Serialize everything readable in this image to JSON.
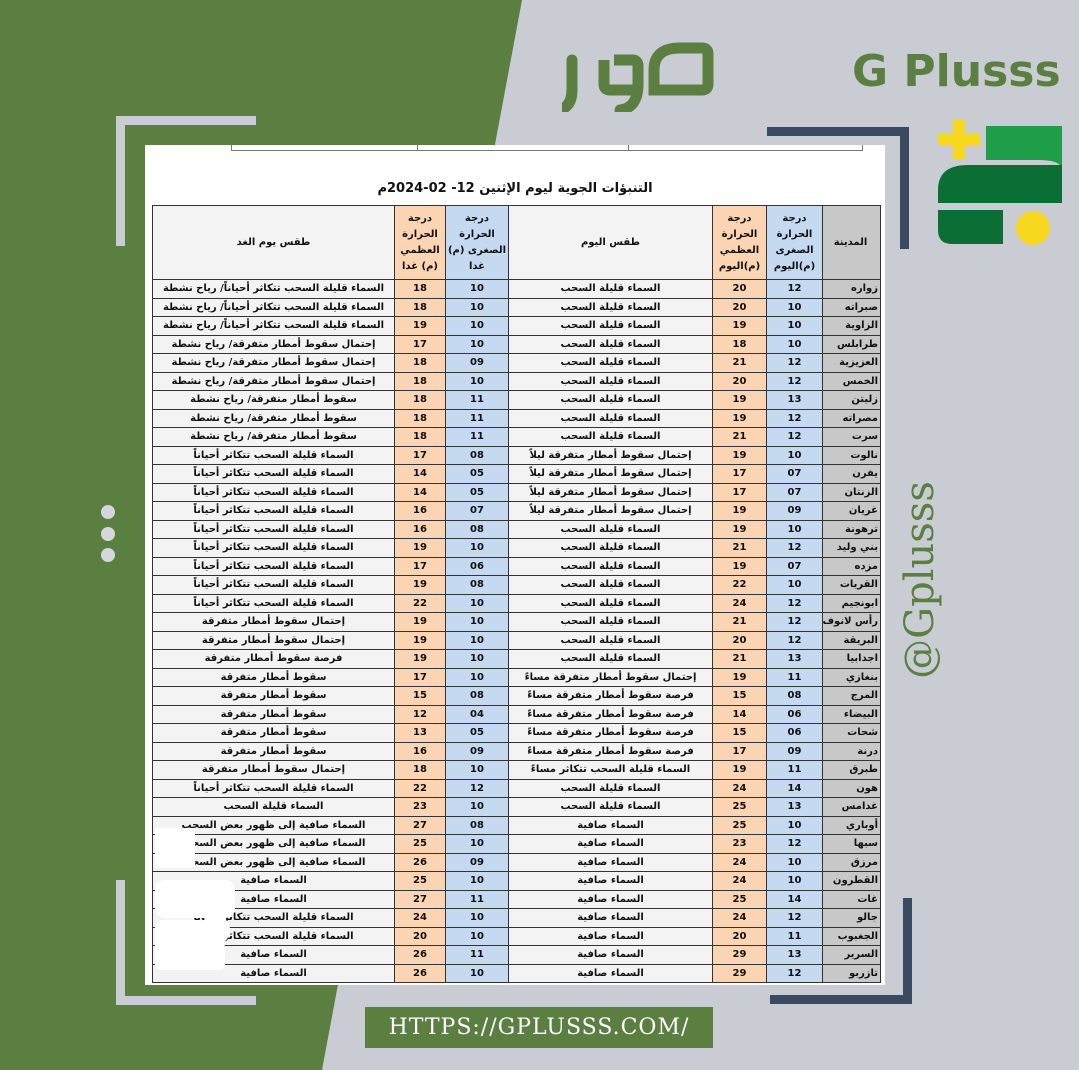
{
  "brand": {
    "arabic_logo": "صور",
    "name": "G Plusss",
    "handle": "@Gplusss",
    "url": "HTTPS://GPLUSSS.COM/",
    "green": "#5a7f41",
    "navy": "#3a4a60",
    "yellow": "#f7d81e",
    "logo_green": "#0a6e35"
  },
  "sheet": {
    "title": "التنبؤات الجوية ليوم الإثنين 12- 02-2024م",
    "headers": {
      "city": "المدينة",
      "min_today": "درجة الحرارة الصغرى (م)اليوم",
      "max_today": "درجة الحرارة العظمي (م)اليوم",
      "weather_today": "طقس اليوم",
      "min_tomorrow": "درجة الحرارة الصغرى (م) غدا",
      "max_tomorrow": "درجة الحرارة العظمي (م) غدا",
      "weather_tomorrow": "طقس يوم الغد"
    },
    "rows": [
      [
        "زواره",
        "12",
        "20",
        "السماء قليلة السحب",
        "10",
        "18",
        "السماء قليلة السحب تتكاثر أحياناً/ رياح نشطة"
      ],
      [
        "صبراته",
        "10",
        "20",
        "السماء قليلة السحب",
        "10",
        "18",
        "السماء قليلة السحب تتكاثر أحياناً/ رياح نشطة"
      ],
      [
        "الزاوية",
        "10",
        "19",
        "السماء قليلة السحب",
        "10",
        "19",
        "السماء قليلة السحب تتكاثر أحياناً/ رياح نشطة"
      ],
      [
        "طرابلس",
        "10",
        "18",
        "السماء قليلة السحب",
        "10",
        "17",
        "إحتمال سقوط أمطار متفرقة/ رياح نشطة"
      ],
      [
        "العزيزية",
        "12",
        "21",
        "السماء قليلة السحب",
        "09",
        "18",
        "إحتمال سقوط أمطار متفرقة/ رياح نشطة"
      ],
      [
        "الخمس",
        "12",
        "20",
        "السماء قليلة السحب",
        "10",
        "18",
        "إحتمال سقوط أمطار متفرقة/ رياح نشطة"
      ],
      [
        "زليتن",
        "13",
        "19",
        "السماء قليلة السحب",
        "11",
        "18",
        "سقوط أمطار متفرقة/ رياح نشطة"
      ],
      [
        "مصراته",
        "12",
        "19",
        "السماء قليلة السحب",
        "11",
        "18",
        "سقوط أمطار متفرقة/ رياح نشطة"
      ],
      [
        "سرت",
        "12",
        "21",
        "السماء قليلة السحب",
        "11",
        "18",
        "سقوط أمطار متفرقة/ رياح نشطة"
      ],
      [
        "نالوت",
        "10",
        "19",
        "إحتمال سقوط أمطار متفرقة ليلاً",
        "08",
        "17",
        "السماء قليلة السحب تتكاثر أحياناً"
      ],
      [
        "يفرن",
        "07",
        "17",
        "إحتمال سقوط أمطار متفرقة ليلاً",
        "05",
        "14",
        "السماء قليلة السحب تتكاثر أحياناً"
      ],
      [
        "الزنتان",
        "07",
        "17",
        "إحتمال سقوط أمطار متفرقة ليلاً",
        "05",
        "14",
        "السماء قليلة السحب تتكاثر أحياناً"
      ],
      [
        "غريان",
        "09",
        "19",
        "إحتمال سقوط أمطار متفرقة ليلاً",
        "07",
        "16",
        "السماء قليلة السحب تتكاثر أحياناً"
      ],
      [
        "ترهونة",
        "10",
        "19",
        "السماء قليلة السحب",
        "08",
        "16",
        "السماء قليلة السحب تتكاثر أحياناً"
      ],
      [
        "بني وليد",
        "12",
        "21",
        "السماء قليلة السحب",
        "10",
        "19",
        "السماء قليلة السحب تتكاثر أحياناً"
      ],
      [
        "مزده",
        "07",
        "19",
        "السماء قليلة السحب",
        "06",
        "17",
        "السماء قليلة السحب تتكاثر أحياناً"
      ],
      [
        "القريات",
        "10",
        "22",
        "السماء قليلة السحب",
        "08",
        "19",
        "السماء قليلة السحب تتكاثر أحياناً"
      ],
      [
        "ابونجيم",
        "12",
        "24",
        "السماء قليلة السحب",
        "10",
        "22",
        "السماء قليلة السحب تتكاثر أحياناً"
      ],
      [
        "رأس لانوف",
        "12",
        "21",
        "السماء قليلة السحب",
        "10",
        "19",
        "إحتمال سقوط أمطار متفرقة"
      ],
      [
        "البريقة",
        "12",
        "20",
        "السماء قليلة السحب",
        "10",
        "19",
        "إحتمال سقوط أمطار متفرقة"
      ],
      [
        "اجدابيا",
        "13",
        "21",
        "السماء قليلة السحب",
        "10",
        "19",
        "فرصة سقوط أمطار متفرقة"
      ],
      [
        "بنغازي",
        "11",
        "19",
        "إحتمال سقوط أمطار متفرقة مساءً",
        "10",
        "17",
        "سقوط أمطار متفرقة"
      ],
      [
        "المرج",
        "08",
        "15",
        "فرصة سقوط أمطار متفرقة مساءً",
        "08",
        "15",
        "سقوط أمطار متفرقة"
      ],
      [
        "البيضاء",
        "06",
        "14",
        "فرصة سقوط أمطار متفرقة مساءً",
        "04",
        "12",
        "سقوط أمطار متفرقة"
      ],
      [
        "شحات",
        "06",
        "15",
        "فرصة سقوط أمطار متفرقة مساءً",
        "05",
        "13",
        "سقوط أمطار متفرقة"
      ],
      [
        "درنة",
        "09",
        "17",
        "فرصة سقوط أمطار متفرقة مساءً",
        "09",
        "16",
        "سقوط أمطار متفرقة"
      ],
      [
        "طبرق",
        "11",
        "19",
        "السماء قليلة السحب تتكاثر مساءً",
        "10",
        "18",
        "إحتمال سقوط أمطار متفرقة"
      ],
      [
        "هون",
        "14",
        "24",
        "السماء قليلة السحب",
        "12",
        "22",
        "السماء قليلة السحب تتكاثر أحياناً"
      ],
      [
        "غدامس",
        "13",
        "25",
        "السماء قليلة السحب",
        "10",
        "23",
        "السماء قليلة السحب"
      ],
      [
        "أوباري",
        "10",
        "25",
        "السماء صافية",
        "08",
        "27",
        "السماء صافية إلى ظهور بعض السحب"
      ],
      [
        "سبها",
        "12",
        "23",
        "السماء صافية",
        "10",
        "25",
        "السماء صافية إلى ظهور بعض السحب"
      ],
      [
        "مرزق",
        "10",
        "24",
        "السماء صافية",
        "09",
        "26",
        "السماء صافية إلى ظهور بعض السحب"
      ],
      [
        "القطرون",
        "10",
        "24",
        "السماء صافية",
        "10",
        "25",
        "السماء صافية"
      ],
      [
        "غات",
        "14",
        "25",
        "السماء صافية",
        "11",
        "27",
        "السماء صافية"
      ],
      [
        "جالو",
        "12",
        "24",
        "السماء صافية",
        "10",
        "24",
        "السماء قليلة السحب تتكاثر أحياناً"
      ],
      [
        "الجغبوب",
        "11",
        "20",
        "السماء صافية",
        "10",
        "20",
        "السماء قليلة السحب تتكاثر أحياناً"
      ],
      [
        "السرير",
        "13",
        "29",
        "السماء صافية",
        "11",
        "26",
        "السماء صافية"
      ],
      [
        "تازربو",
        "12",
        "29",
        "السماء صافية",
        "10",
        "26",
        "السماء صافية"
      ]
    ]
  }
}
